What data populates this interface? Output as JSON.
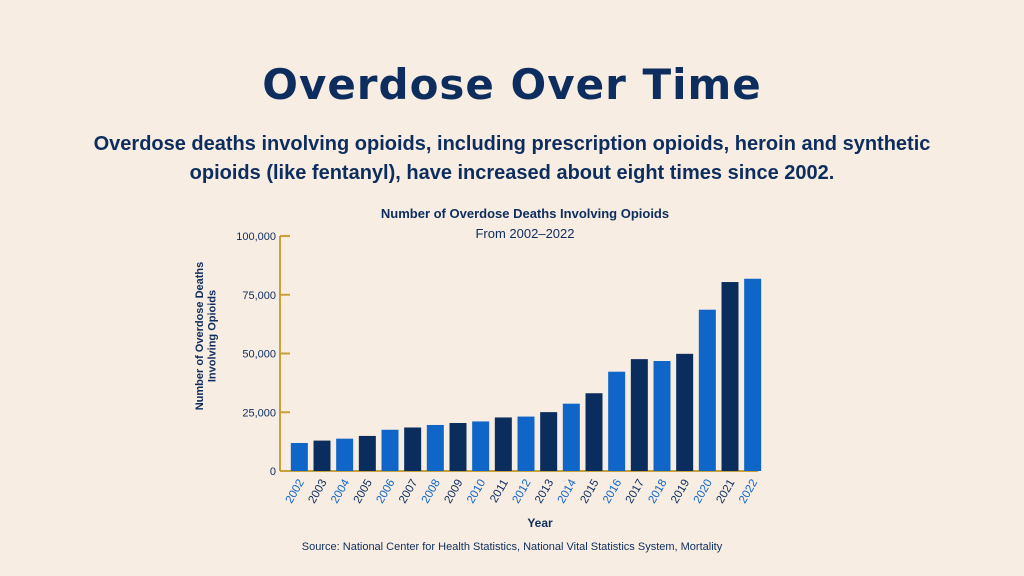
{
  "header": {
    "title": "Overdose Over Time",
    "subtitle": "Overdose deaths involving opioids, including prescription opioids, heroin and synthetic opioids (like fentanyl), have increased about eight times since 2002."
  },
  "footer": {
    "source": "Source: National Center for Health Statistics, National Vital Statistics System, Mortality"
  },
  "colors": {
    "light_blue": "#0f66c8",
    "navy": "#0b2d5e",
    "axis": "#c9a13b",
    "text": "#0d2d5e",
    "background": "#f7ede2"
  },
  "chart_data": {
    "type": "bar",
    "title": "Number of Overdose Deaths Involving Opioids",
    "subtitle": "From 2002–2022",
    "xlabel": "Year",
    "ylabel": "Number of Overdose Deaths Involving Opioids",
    "ylim": [
      0,
      100000
    ],
    "yticks": [
      0,
      25000,
      50000,
      75000,
      100000
    ],
    "ytick_labels": [
      "0",
      "25,000",
      "50,000",
      "75,000",
      "100,000"
    ],
    "categories": [
      "2002",
      "2003",
      "2004",
      "2005",
      "2006",
      "2007",
      "2008",
      "2009",
      "2010",
      "2011",
      "2012",
      "2013",
      "2014",
      "2015",
      "2016",
      "2017",
      "2018",
      "2019",
      "2020",
      "2021",
      "2022"
    ],
    "values": [
      11920,
      12940,
      13756,
      14918,
      17545,
      18516,
      19582,
      20422,
      21089,
      22784,
      23166,
      25052,
      28647,
      33091,
      42249,
      47600,
      46802,
      49860,
      68630,
      80411,
      81806
    ],
    "bar_colors": [
      "light_blue",
      "navy",
      "light_blue",
      "navy",
      "light_blue",
      "navy",
      "light_blue",
      "navy",
      "light_blue",
      "navy",
      "light_blue",
      "navy",
      "light_blue",
      "navy",
      "light_blue",
      "navy",
      "light_blue",
      "navy",
      "light_blue",
      "navy",
      "light_blue"
    ],
    "grid": false,
    "legend": "none"
  }
}
